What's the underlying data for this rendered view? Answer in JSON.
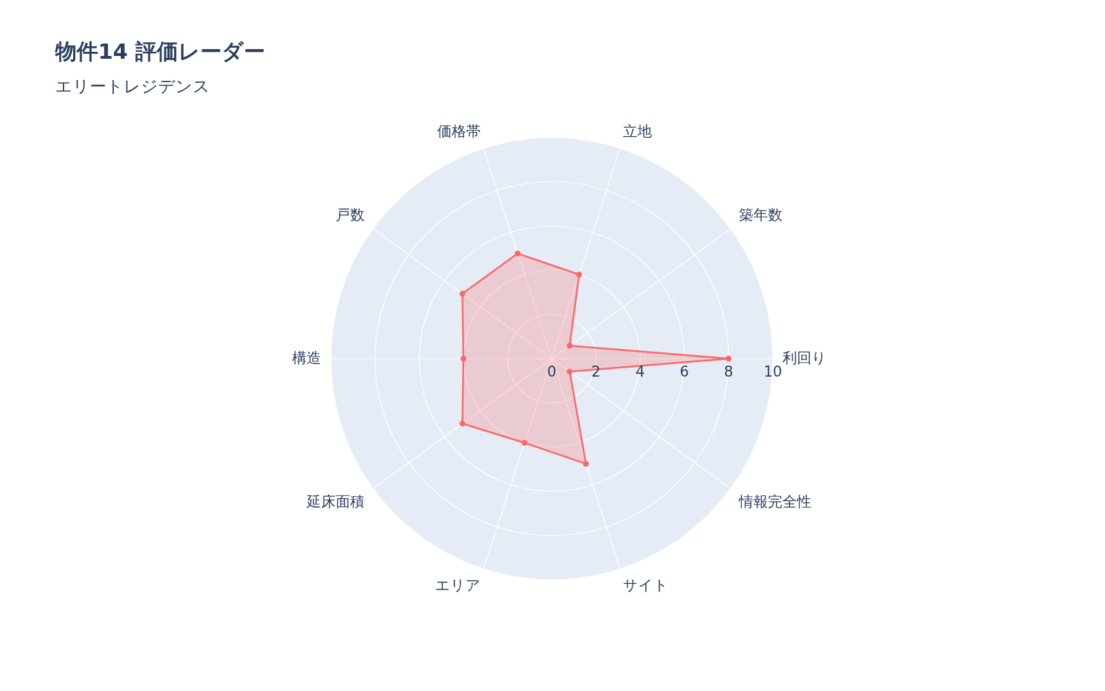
{
  "chart_data": {
    "type": "radar",
    "title": "物件14 評価レーダー",
    "subtitle": "エリートレジデンス",
    "categories": [
      "立地",
      "築年数",
      "利回り",
      "情報完全性",
      "サイト",
      "エリア",
      "延床面積",
      "構造",
      "戸数",
      "価格帯"
    ],
    "series": [
      {
        "color": "#ff6666",
        "values": [
          4,
          1,
          8,
          1,
          5,
          4,
          5,
          4,
          5,
          5
        ]
      }
    ],
    "ylim": [
      0,
      10
    ],
    "yticks": [
      0,
      2,
      4,
      6,
      8,
      10
    ],
    "marker": "circle",
    "grid": true
  }
}
